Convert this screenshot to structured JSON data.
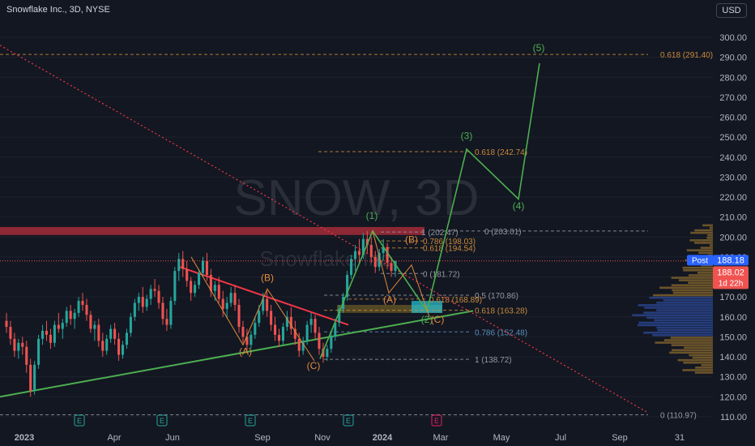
{
  "header": {
    "symbol_title": "Snowflake Inc., 3D, NYSE",
    "currency": "USD"
  },
  "watermark": {
    "ticker": "SNOW, 3D",
    "company": "Snowflake Inc."
  },
  "colors": {
    "background": "#131722",
    "up": "#26a69a",
    "down": "#ef5350",
    "wave_green": "#4caf50",
    "wave_orange": "#e08a3c",
    "fib_orange": "#c98a3a",
    "fib_gray": "#9598a1",
    "fib_blue": "#5b8fb9",
    "resistance": "#f23645",
    "post_badge": "#2962ff"
  },
  "chart_data": {
    "type": "candlestick",
    "ylim": [
      106,
      308
    ],
    "y_ticks": [
      110,
      120,
      130,
      140,
      150,
      160,
      170,
      180,
      190,
      200,
      210,
      220,
      230,
      240,
      250,
      260,
      270,
      280,
      290,
      300
    ],
    "x_labels": [
      "2023",
      "Apr",
      "Jun",
      "Sep",
      "Nov",
      "2024",
      "Mar",
      "May",
      "Jul",
      "Sep",
      "31"
    ],
    "earnings_markers": [
      "E",
      "E",
      "E",
      "E",
      "E"
    ],
    "last_price": "188.02",
    "post_price": "188.18",
    "post_label": "Post",
    "countdown": "1d 22h",
    "candles_ohlc": [
      [
        158,
        162,
        152,
        155
      ],
      [
        155,
        158,
        146,
        149
      ],
      [
        149,
        152,
        140,
        143
      ],
      [
        143,
        149,
        139,
        147
      ],
      [
        147,
        150,
        141,
        145
      ],
      [
        145,
        148,
        132,
        136
      ],
      [
        136,
        139,
        120,
        123
      ],
      [
        123,
        138,
        121,
        136
      ],
      [
        136,
        151,
        134,
        149
      ],
      [
        149,
        156,
        146,
        153
      ],
      [
        153,
        158,
        148,
        151
      ],
      [
        151,
        154,
        144,
        147
      ],
      [
        147,
        158,
        145,
        156
      ],
      [
        156,
        162,
        152,
        154
      ],
      [
        154,
        159,
        149,
        157
      ],
      [
        157,
        165,
        155,
        163
      ],
      [
        163,
        166,
        156,
        159
      ],
      [
        159,
        164,
        154,
        162
      ],
      [
        162,
        170,
        160,
        168
      ],
      [
        168,
        172,
        163,
        166
      ],
      [
        166,
        169,
        158,
        161
      ],
      [
        161,
        163,
        152,
        154
      ],
      [
        154,
        158,
        148,
        156
      ],
      [
        156,
        159,
        145,
        148
      ],
      [
        148,
        152,
        140,
        143
      ],
      [
        143,
        151,
        141,
        149
      ],
      [
        149,
        156,
        147,
        154
      ],
      [
        154,
        157,
        146,
        149
      ],
      [
        149,
        152,
        138,
        141
      ],
      [
        141,
        148,
        139,
        146
      ],
      [
        146,
        154,
        144,
        152
      ],
      [
        152,
        162,
        150,
        160
      ],
      [
        160,
        169,
        158,
        167
      ],
      [
        167,
        172,
        163,
        170
      ],
      [
        170,
        175,
        162,
        165
      ],
      [
        165,
        171,
        163,
        169
      ],
      [
        169,
        176,
        166,
        174
      ],
      [
        174,
        179,
        170,
        173
      ],
      [
        173,
        176,
        164,
        167
      ],
      [
        167,
        170,
        156,
        159
      ],
      [
        159,
        164,
        153,
        156
      ],
      [
        156,
        170,
        154,
        168
      ],
      [
        168,
        185,
        166,
        183
      ],
      [
        183,
        192,
        178,
        189
      ],
      [
        189,
        193,
        180,
        184
      ],
      [
        184,
        188,
        175,
        178
      ],
      [
        178,
        180,
        168,
        172
      ],
      [
        172,
        178,
        170,
        176
      ],
      [
        176,
        184,
        174,
        182
      ],
      [
        182,
        190,
        180,
        188
      ],
      [
        188,
        192,
        178,
        181
      ],
      [
        181,
        184,
        170,
        173
      ],
      [
        173,
        178,
        168,
        176
      ],
      [
        176,
        180,
        167,
        169
      ],
      [
        169,
        173,
        160,
        164
      ],
      [
        164,
        170,
        159,
        167
      ],
      [
        167,
        175,
        165,
        172
      ],
      [
        172,
        176,
        163,
        166
      ],
      [
        166,
        169,
        152,
        155
      ],
      [
        155,
        158,
        147,
        150
      ],
      [
        150,
        154,
        143,
        146
      ],
      [
        146,
        153,
        144,
        151
      ],
      [
        151,
        160,
        149,
        157
      ],
      [
        157,
        166,
        155,
        163
      ],
      [
        163,
        172,
        161,
        169
      ],
      [
        169,
        173,
        160,
        163
      ],
      [
        163,
        166,
        153,
        156
      ],
      [
        156,
        160,
        148,
        151
      ],
      [
        151,
        154,
        145,
        148
      ],
      [
        148,
        157,
        146,
        155
      ],
      [
        155,
        163,
        153,
        160
      ],
      [
        160,
        165,
        151,
        154
      ],
      [
        154,
        158,
        146,
        149
      ],
      [
        149,
        152,
        140,
        143
      ],
      [
        143,
        150,
        141,
        148
      ],
      [
        148,
        158,
        146,
        156
      ],
      [
        156,
        162,
        152,
        159
      ],
      [
        159,
        161,
        149,
        152
      ],
      [
        152,
        155,
        141,
        144
      ],
      [
        144,
        147,
        137,
        140
      ],
      [
        140,
        146,
        138,
        144
      ],
      [
        144,
        152,
        142,
        150
      ],
      [
        150,
        159,
        148,
        157
      ],
      [
        157,
        166,
        155,
        164
      ],
      [
        164,
        172,
        162,
        170
      ],
      [
        170,
        183,
        168,
        181
      ],
      [
        181,
        191,
        179,
        189
      ],
      [
        189,
        196,
        183,
        193
      ],
      [
        193,
        199,
        187,
        191
      ],
      [
        191,
        202,
        189,
        199
      ],
      [
        199,
        203,
        192,
        196
      ],
      [
        196,
        200,
        187,
        190
      ],
      [
        190,
        193,
        182,
        185
      ],
      [
        185,
        194,
        183,
        192
      ],
      [
        192,
        199,
        188,
        195
      ],
      [
        195,
        197,
        184,
        187
      ],
      [
        187,
        190,
        180,
        183
      ],
      [
        183,
        185,
        180,
        188
      ]
    ],
    "fib_levels": [
      {
        "label": "0.618 (291.40)",
        "value": 291.4
      },
      {
        "label": "0.618 (242.74)",
        "value": 242.74
      },
      {
        "label": "1 (202.47)",
        "value": 202.47
      },
      {
        "label": "0 (203.01)",
        "value": 203.01
      },
      {
        "label": "0.786 (198.03)",
        "value": 198.03
      },
      {
        "label": "0.618 (194.54)",
        "value": 194.54
      },
      {
        "label": "0 (181.72)",
        "value": 181.72
      },
      {
        "label": "0.5 (170.86)",
        "value": 170.86
      },
      {
        "label": "0.618 (168.89)",
        "value": 168.89
      },
      {
        "label": "0.618 (163.28)",
        "value": 163.28
      },
      {
        "label": "0.786 (152.48)",
        "value": 152.48
      },
      {
        "label": "1 (138.72)",
        "value": 138.72
      },
      {
        "label": "0 (110.97)",
        "value": 110.97
      }
    ],
    "wave_labels": [
      "(1)",
      "(2)",
      "(3)",
      "(4)",
      "(5)",
      "(A)",
      "(B)",
      "(C)",
      "(A)",
      "(B)",
      "(C)"
    ]
  }
}
